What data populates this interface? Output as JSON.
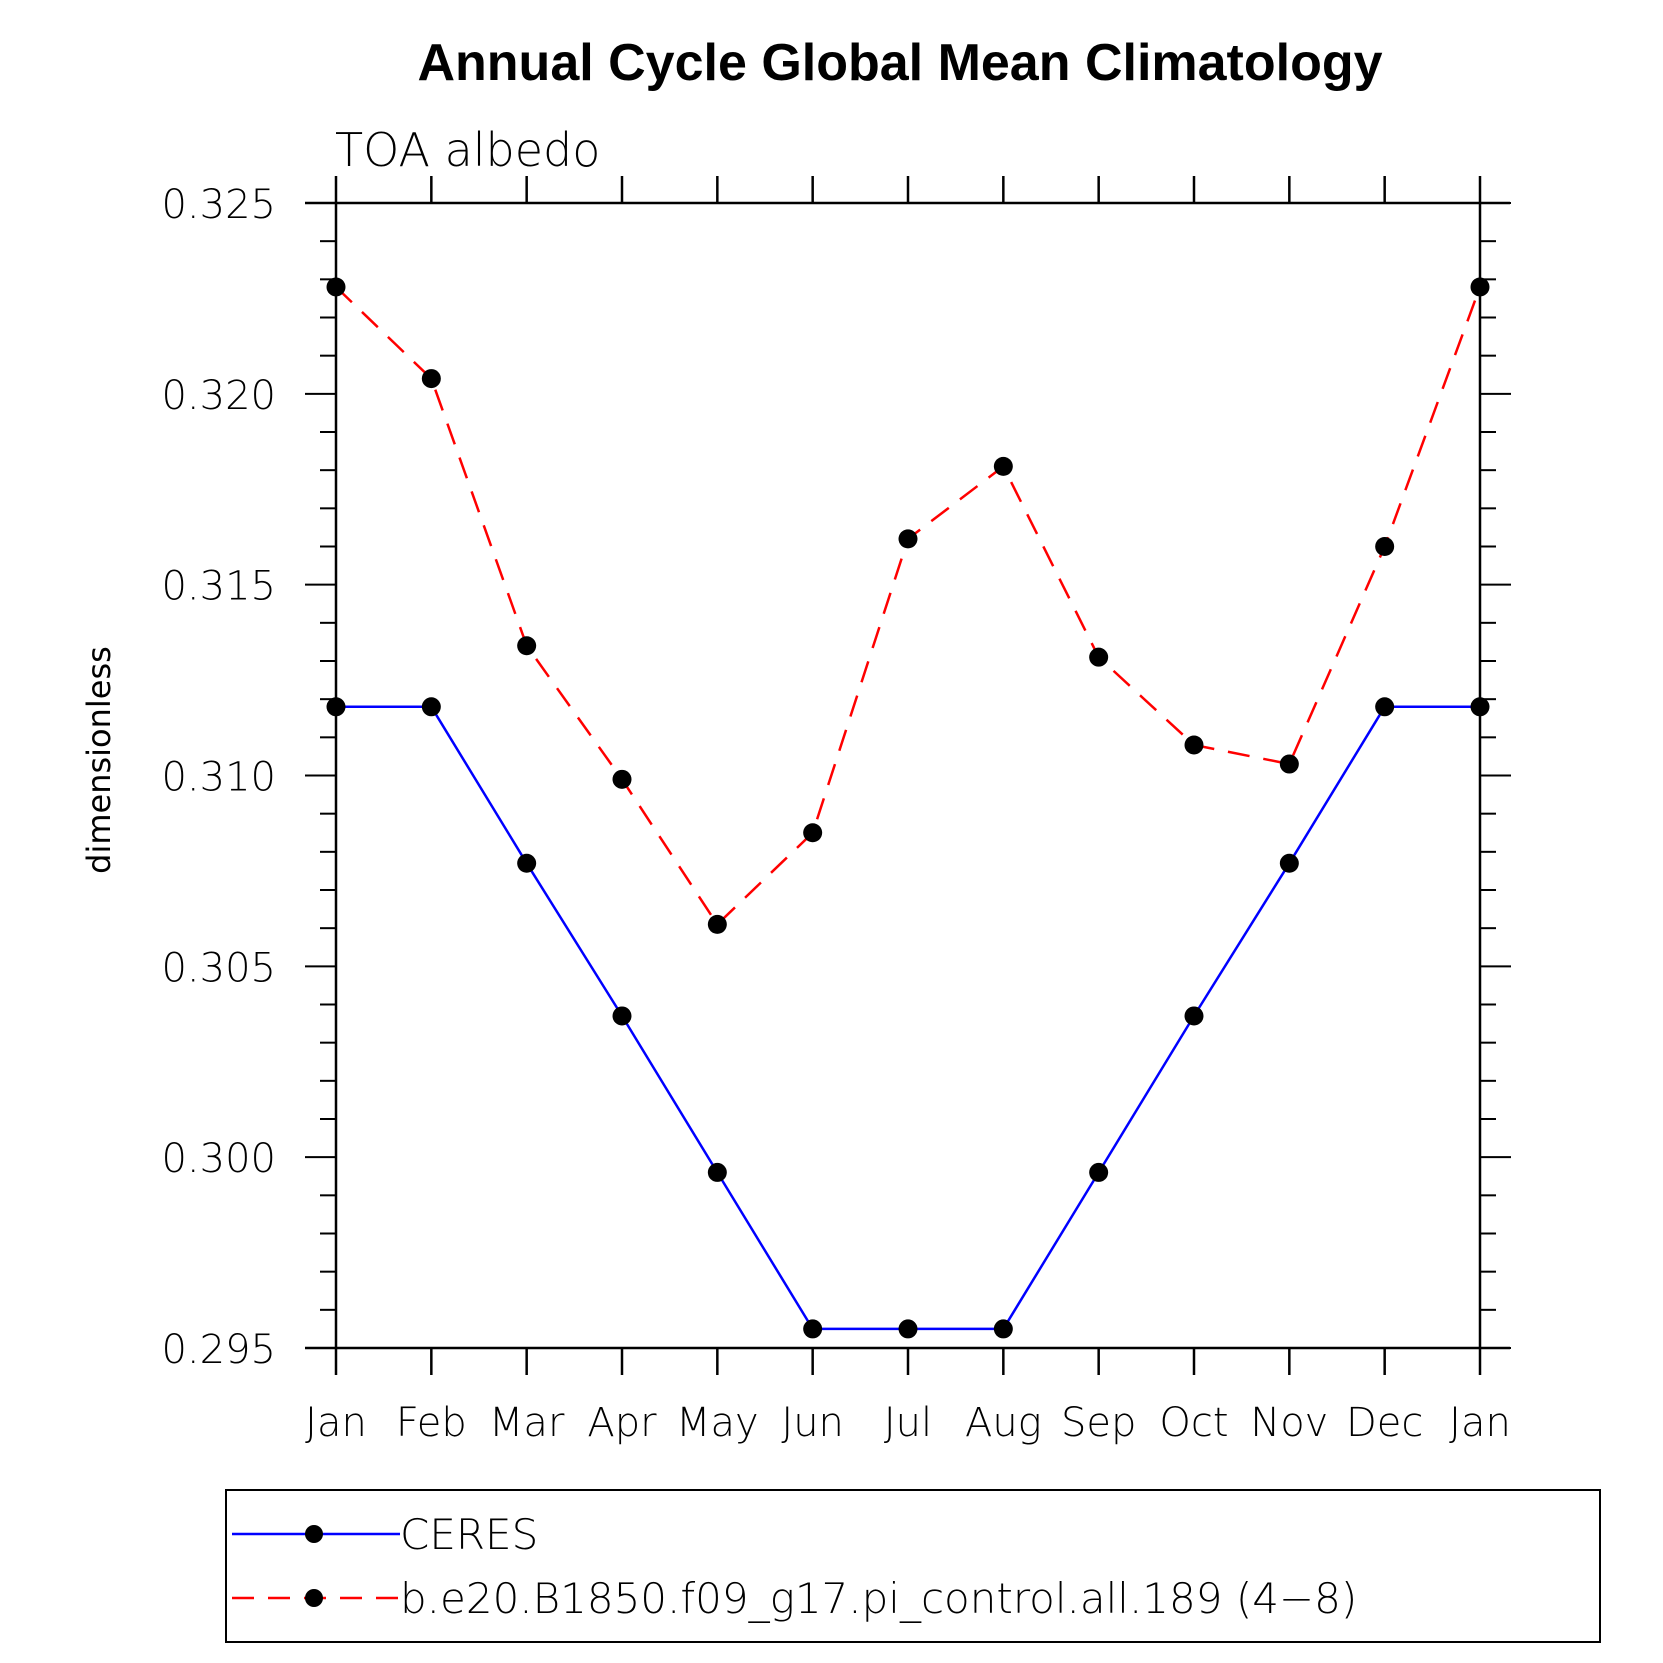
{
  "chart_data": {
    "type": "line",
    "title": "Annual Cycle Global Mean Climatology",
    "subtitle": "TOA albedo",
    "xlabel": "",
    "ylabel": "dimensionless",
    "categories": [
      "Jan",
      "Feb",
      "Mar",
      "Apr",
      "May",
      "Jun",
      "Jul",
      "Aug",
      "Sep",
      "Oct",
      "Nov",
      "Dec",
      "Jan"
    ],
    "y_ticks": [
      "0.325",
      "0.320",
      "0.315",
      "0.310",
      "0.305",
      "0.300",
      "0.295"
    ],
    "ylim": [
      0.295,
      0.325
    ],
    "series": [
      {
        "name": "CERES",
        "color": "#0000ff",
        "dash": "solid",
        "values": [
          0.3118,
          0.3118,
          0.3077,
          0.3037,
          0.2996,
          0.2955,
          0.2955,
          0.2955,
          0.2996,
          0.3037,
          0.3077,
          0.3118,
          0.3118
        ]
      },
      {
        "name": "b.e20.B1850.f09_g17.pi_control.all.189 (4−8)",
        "color": "#ff0000",
        "dash": "dashed",
        "values": [
          0.3228,
          0.3204,
          0.3134,
          0.3099,
          0.3061,
          0.3085,
          0.3162,
          0.3181,
          0.3131,
          0.3108,
          0.3103,
          0.316,
          0.3228
        ]
      }
    ],
    "marker_color": "#000000"
  }
}
